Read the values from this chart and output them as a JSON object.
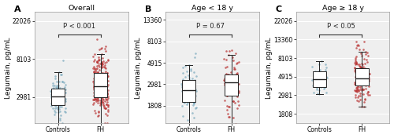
{
  "panels": [
    {
      "label": "A",
      "title": "Overall",
      "pvalue": "P < 0.001",
      "ylabel": "Legumain, pg/mL",
      "yticks": [
        2981,
        8103,
        22026
      ],
      "ylim_low": 1500,
      "ylim_high": 28000,
      "ctrl_median": 2981,
      "ctrl_q1": 2700,
      "ctrl_q3": 3200,
      "ctrl_wlo": 1900,
      "ctrl_whi": 4600,
      "fh_median": 4200,
      "fh_q1": 3600,
      "fh_q3": 5200,
      "fh_wlo": 2000,
      "fh_whi": 8500,
      "ctrl_spread": 0.3,
      "fh_spread": 0.45,
      "n_ctrl": 96,
      "n_fh": 251
    },
    {
      "label": "B",
      "title": "Age < 18 y",
      "pvalue": "P = 0.67",
      "ylabel": "Legumain, pg/mL",
      "yticks": [
        1808,
        2981,
        4915,
        8103,
        13360
      ],
      "ylim_low": 1200,
      "ylim_high": 16000,
      "ctrl_median": 2800,
      "ctrl_q1": 2400,
      "ctrl_q3": 3200,
      "ctrl_wlo": 1808,
      "ctrl_whi": 4500,
      "fh_median": 2981,
      "fh_q1": 2500,
      "fh_q3": 3600,
      "fh_wlo": 1808,
      "fh_whi": 5500,
      "ctrl_spread": 0.38,
      "fh_spread": 0.43,
      "n_ctrl": 64,
      "n_fh": 85
    },
    {
      "label": "C",
      "title": "Age ≥ 18 y",
      "pvalue": "P < 0.05",
      "ylabel": "Legumain, pg/mL",
      "yticks": [
        1808,
        2981,
        4915,
        8103,
        13360,
        22026
      ],
      "ylim_low": 1400,
      "ylim_high": 28000,
      "ctrl_median": 4400,
      "ctrl_q1": 3800,
      "ctrl_q3": 4900,
      "ctrl_wlo": 2800,
      "ctrl_whi": 6500,
      "fh_median": 5100,
      "fh_q1": 4500,
      "fh_q3": 6000,
      "fh_wlo": 2100,
      "fh_whi": 8200,
      "ctrl_spread": 0.28,
      "fh_spread": 0.38,
      "n_ctrl": 32,
      "n_fh": 166
    }
  ],
  "control_color": "#7baabe",
  "fh_color": "#b83232",
  "background_color": "#efefef",
  "grid_color": "#ffffff",
  "label_fontsize": 6.5,
  "tick_fontsize": 5.5,
  "title_fontsize": 6.8,
  "pval_fontsize": 6.0
}
